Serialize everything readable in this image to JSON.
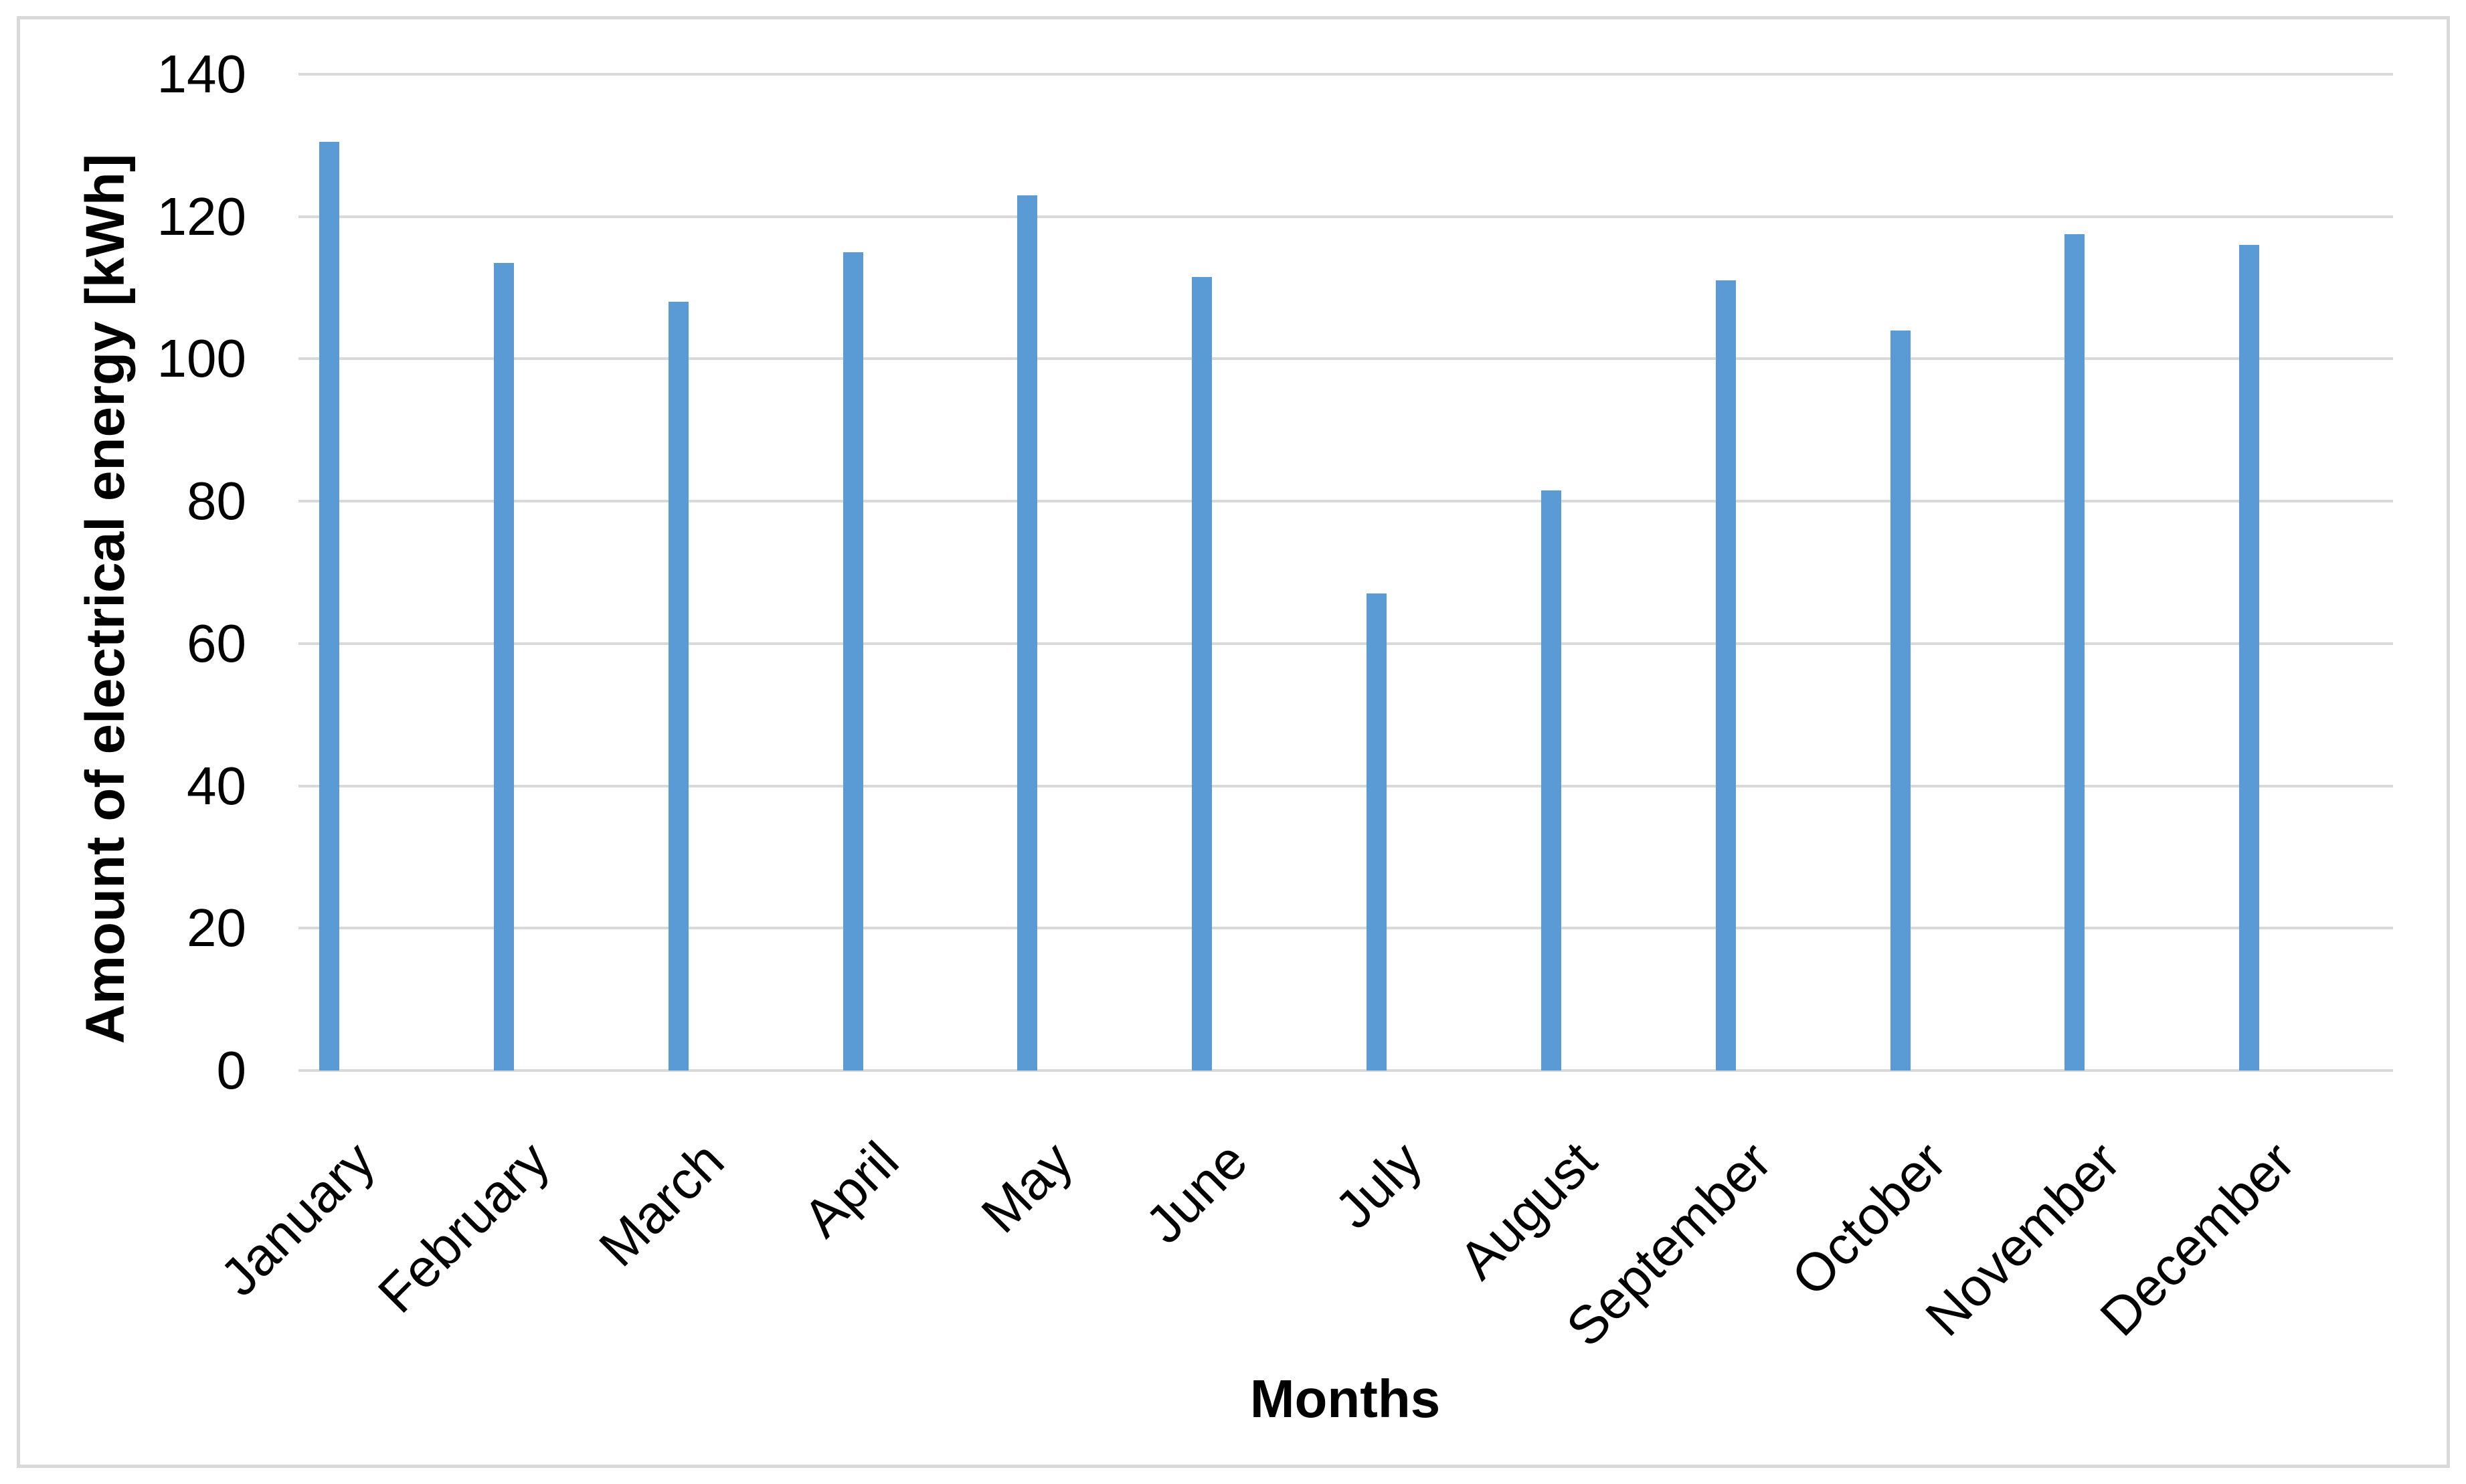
{
  "chart_data": {
    "type": "bar",
    "title": "",
    "categories": [
      "January",
      "February",
      "March",
      "April",
      "May",
      "June",
      "July",
      "August",
      "September",
      "October",
      "November",
      "December"
    ],
    "values": [
      130.5,
      113.5,
      108,
      115,
      123,
      111.5,
      67,
      81.5,
      111,
      104,
      117.5,
      116
    ],
    "xlabel": "Months",
    "ylabel": "Amount of electrical energy [kWh]",
    "ylim": [
      0,
      140
    ],
    "yticks": [
      0,
      20,
      40,
      60,
      80,
      100,
      120,
      140
    ],
    "grid": "horizontal",
    "legend": "none",
    "colors": {
      "bar": "#5B9BD5",
      "gridline": "#D9D9D9",
      "frame_border": "#D9D9D9",
      "text": "#000000",
      "background": "#FFFFFF"
    }
  }
}
